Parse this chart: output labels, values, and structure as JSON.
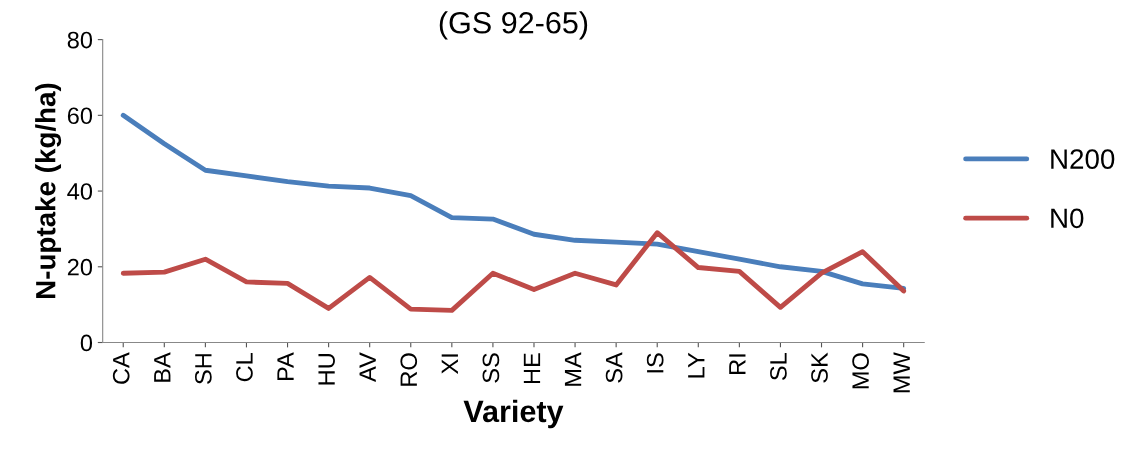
{
  "chart_data": {
    "type": "line",
    "title": "(GS 92-65)",
    "xlabel": "Variety",
    "ylabel": "N-uptake (kg/ha)",
    "categories": [
      "CA",
      "BA",
      "SH",
      "CL",
      "PA",
      "HU",
      "AV",
      "RO",
      "XI",
      "SS",
      "HE",
      "MA",
      "SA",
      "IS",
      "LY",
      "RI",
      "SL",
      "SK",
      "MO",
      "MW"
    ],
    "series": [
      {
        "name": "N200",
        "color": "#4a7ebb",
        "values": [
          60,
          52.5,
          45.5,
          44,
          42.5,
          41.3,
          40.8,
          38.8,
          33,
          32.6,
          28.6,
          27,
          26.5,
          26,
          24,
          22,
          20,
          18.8,
          15.5,
          14.3
        ]
      },
      {
        "name": "N0",
        "color": "#be4b48",
        "values": [
          18.3,
          18.6,
          22,
          16,
          15.6,
          9,
          17.2,
          8.8,
          8.5,
          18.3,
          14,
          18.3,
          15.2,
          29,
          19.8,
          18.8,
          9.3,
          18.3,
          24,
          13.6
        ]
      }
    ],
    "ylim": [
      0,
      80
    ],
    "yticks": [
      0,
      20,
      40,
      60,
      80
    ],
    "grid": false,
    "legend": "right",
    "marker": "none",
    "line_style": "solid"
  }
}
